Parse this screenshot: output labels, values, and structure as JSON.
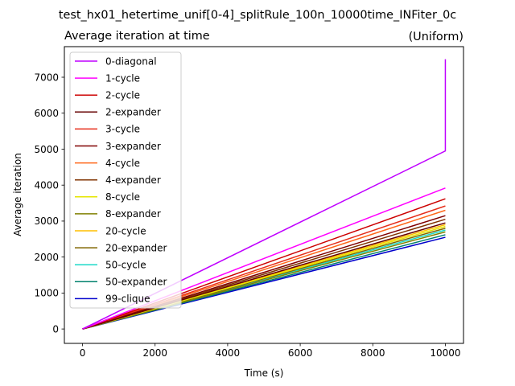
{
  "figure": {
    "suptitle": "test_hx01_hetertime_unif[0-4]_splitRule_100n_10000time_INFiter_0c"
  },
  "chart_data": {
    "type": "line",
    "title": "Average iteration at time",
    "title_right": "(Uniform)",
    "xlabel": "Time (s)",
    "ylabel": "Average iteration",
    "xlim": [
      -500,
      10500
    ],
    "ylim": [
      -400,
      7850
    ],
    "xticks": [
      0,
      2000,
      4000,
      6000,
      8000,
      10000
    ],
    "yticks": [
      0,
      1000,
      2000,
      3000,
      4000,
      5000,
      6000,
      7000
    ],
    "grid": false,
    "legend_position": "top-left",
    "series": [
      {
        "name": "0-diagonal",
        "color": "#bf00ff",
        "x": [
          0,
          10000,
          10000
        ],
        "y": [
          0,
          4950,
          7500
        ]
      },
      {
        "name": "1-cycle",
        "color": "#ff00ff",
        "x": [
          0,
          10000
        ],
        "y": [
          0,
          3920
        ]
      },
      {
        "name": "2-cycle",
        "color": "#cc0000",
        "x": [
          0,
          10000
        ],
        "y": [
          0,
          3620
        ]
      },
      {
        "name": "2-expander",
        "color": "#660000",
        "x": [
          0,
          10000
        ],
        "y": [
          0,
          2950
        ]
      },
      {
        "name": "3-cycle",
        "color": "#e62e1a",
        "x": [
          0,
          10000
        ],
        "y": [
          0,
          3420
        ]
      },
      {
        "name": "3-expander",
        "color": "#800000",
        "x": [
          0,
          10000
        ],
        "y": [
          0,
          3150
        ]
      },
      {
        "name": "4-cycle",
        "color": "#ff6619",
        "x": [
          0,
          10000
        ],
        "y": [
          0,
          3300
        ]
      },
      {
        "name": "4-expander",
        "color": "#803300",
        "x": [
          0,
          10000
        ],
        "y": [
          0,
          3050
        ]
      },
      {
        "name": "8-cycle",
        "color": "#e6e600",
        "x": [
          0,
          10000
        ],
        "y": [
          0,
          2850
        ]
      },
      {
        "name": "8-expander",
        "color": "#808000",
        "x": [
          0,
          10000
        ],
        "y": [
          0,
          2700
        ]
      },
      {
        "name": "20-cycle",
        "color": "#ffbf00",
        "x": [
          0,
          10000
        ],
        "y": [
          0,
          2900
        ]
      },
      {
        "name": "20-expander",
        "color": "#806600",
        "x": [
          0,
          10000
        ],
        "y": [
          0,
          2800
        ]
      },
      {
        "name": "50-cycle",
        "color": "#1ad9c8",
        "x": [
          0,
          10000
        ],
        "y": [
          0,
          2750
        ]
      },
      {
        "name": "50-expander",
        "color": "#00806c",
        "x": [
          0,
          10000
        ],
        "y": [
          0,
          2620
        ]
      },
      {
        "name": "99-clique",
        "color": "#0000cc",
        "x": [
          0,
          10000
        ],
        "y": [
          0,
          2550
        ]
      }
    ]
  }
}
